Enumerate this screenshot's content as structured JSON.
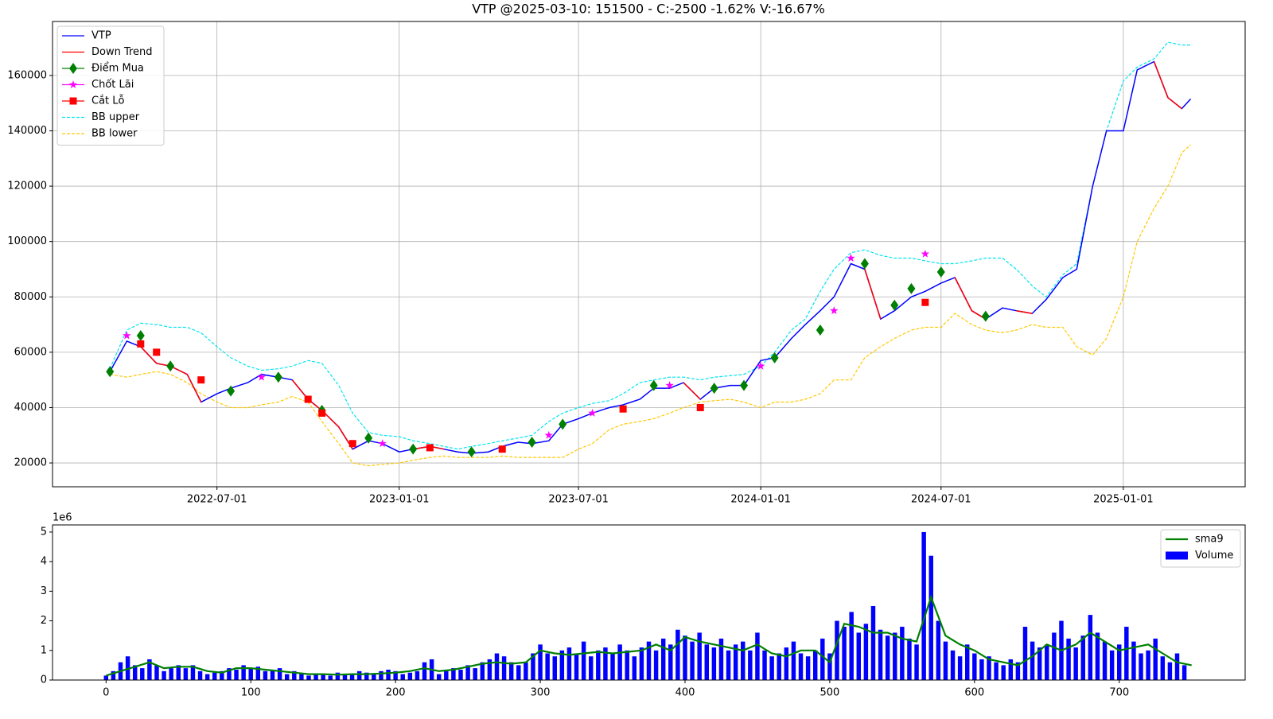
{
  "chart_data": [
    {
      "type": "line",
      "title": "VTP @2025-03-10: 151500 - C:-2500 -1.62% V:-16.67%",
      "grid": true,
      "legend": "upper-left",
      "xlim": [
        "2022-01-16",
        "2025-05-04"
      ],
      "xticks": [
        "2022-07-01",
        "2023-01-01",
        "2023-07-01",
        "2024-01-01",
        "2024-07-01",
        "2025-01-01"
      ],
      "ylim": [
        11400,
        179500
      ],
      "yticks": [
        20000,
        40000,
        60000,
        80000,
        100000,
        120000,
        140000,
        160000
      ],
      "x": [
        "2022-03-15",
        "2022-04-01",
        "2022-04-15",
        "2022-05-01",
        "2022-05-15",
        "2022-06-01",
        "2022-06-15",
        "2022-07-01",
        "2022-07-15",
        "2022-08-01",
        "2022-08-15",
        "2022-09-01",
        "2022-09-15",
        "2022-10-01",
        "2022-10-15",
        "2022-11-01",
        "2022-11-15",
        "2022-12-01",
        "2022-12-15",
        "2023-01-01",
        "2023-01-15",
        "2023-02-01",
        "2023-02-15",
        "2023-03-01",
        "2023-03-15",
        "2023-04-01",
        "2023-04-15",
        "2023-05-01",
        "2023-05-15",
        "2023-06-01",
        "2023-06-15",
        "2023-07-01",
        "2023-07-15",
        "2023-08-01",
        "2023-08-15",
        "2023-09-01",
        "2023-09-15",
        "2023-10-01",
        "2023-10-15",
        "2023-11-01",
        "2023-11-15",
        "2023-12-01",
        "2023-12-15",
        "2024-01-01",
        "2024-01-15",
        "2024-02-01",
        "2024-02-15",
        "2024-03-01",
        "2024-03-15",
        "2024-04-01",
        "2024-04-15",
        "2024-05-01",
        "2024-05-15",
        "2024-06-01",
        "2024-06-15",
        "2024-07-01",
        "2024-07-15",
        "2024-08-01",
        "2024-08-15",
        "2024-09-01",
        "2024-09-15",
        "2024-10-01",
        "2024-10-15",
        "2024-11-01",
        "2024-11-15",
        "2024-12-01",
        "2024-12-15",
        "2025-01-01",
        "2025-01-15",
        "2025-02-01",
        "2025-02-15",
        "2025-03-01",
        "2025-03-10"
      ],
      "series": [
        {
          "name": "VTP",
          "color": "#0000ff",
          "width": 1.5,
          "values": [
            53000,
            64000,
            62000,
            56000,
            55000,
            52000,
            42000,
            45000,
            47000,
            49000,
            52000,
            51000,
            50000,
            43000,
            39000,
            33000,
            25000,
            28000,
            27000,
            24000,
            25000,
            26000,
            25000,
            24000,
            23500,
            24000,
            26000,
            27500,
            27000,
            28000,
            34000,
            36000,
            38000,
            40000,
            41000,
            43000,
            47000,
            47000,
            49000,
            43000,
            47000,
            48000,
            48000,
            57000,
            58000,
            65000,
            70000,
            75000,
            80000,
            92000,
            90000,
            72000,
            75000,
            80000,
            82000,
            85000,
            87000,
            75000,
            72000,
            76000,
            75000,
            74000,
            79000,
            87000,
            90000,
            120000,
            140000,
            140000,
            162000,
            165000,
            152000,
            148000,
            151500
          ]
        },
        {
          "name": "Down Trend",
          "color": "#ff0000",
          "width": 1.5,
          "values": [
            null,
            null,
            62000,
            56000,
            55000,
            52000,
            42000,
            null,
            null,
            null,
            null,
            null,
            50000,
            43000,
            39000,
            33000,
            25000,
            null,
            null,
            null,
            25000,
            26000,
            25000,
            null,
            null,
            null,
            null,
            null,
            null,
            null,
            null,
            null,
            null,
            null,
            null,
            null,
            null,
            null,
            49000,
            43000,
            null,
            null,
            null,
            null,
            null,
            null,
            null,
            null,
            null,
            null,
            90000,
            72000,
            null,
            null,
            null,
            null,
            87000,
            75000,
            72000,
            null,
            75000,
            74000,
            null,
            null,
            null,
            null,
            null,
            null,
            null,
            165000,
            152000,
            148000,
            null
          ]
        },
        {
          "name": "Điểm Mua",
          "color": "#008000",
          "marker": "diamond",
          "x": [
            "2022-03-15",
            "2022-04-15",
            "2022-05-15",
            "2022-07-15",
            "2022-09-01",
            "2022-10-15",
            "2022-12-01",
            "2023-01-15",
            "2023-03-15",
            "2023-05-15",
            "2023-06-15",
            "2023-09-15",
            "2023-11-15",
            "2023-12-15",
            "2024-01-15",
            "2024-03-01",
            "2024-04-15",
            "2024-05-15",
            "2024-06-01",
            "2024-07-01",
            "2024-08-15"
          ],
          "values": [
            53000,
            66000,
            55000,
            46000,
            51000,
            39000,
            29000,
            25000,
            24000,
            27500,
            34000,
            48000,
            47000,
            48000,
            58000,
            68000,
            92000,
            77000,
            83000,
            89000,
            73000
          ]
        },
        {
          "name": "Chốt Lãi",
          "color": "#ff00ff",
          "marker": "star",
          "x": [
            "2022-04-01",
            "2022-08-15",
            "2022-12-15",
            "2023-06-01",
            "2023-07-15",
            "2023-10-01",
            "2024-01-01",
            "2024-03-15",
            "2024-04-01",
            "2024-06-15"
          ],
          "values": [
            66000,
            51000,
            27000,
            30000,
            38000,
            48000,
            55000,
            75000,
            94000,
            95500
          ]
        },
        {
          "name": "Cắt Lỗ",
          "color": "#ff0000",
          "marker": "square",
          "x": [
            "2022-04-15",
            "2022-05-01",
            "2022-06-15",
            "2022-10-01",
            "2022-10-15",
            "2022-11-15",
            "2023-02-01",
            "2023-04-15",
            "2023-08-15",
            "2023-11-01",
            "2024-06-15"
          ],
          "values": [
            63000,
            60000,
            50000,
            43000,
            38000,
            27000,
            25500,
            25000,
            39500,
            40000,
            78000
          ]
        },
        {
          "name": "BB upper",
          "color": "#00e5ee",
          "dashed": true,
          "width": 1.2,
          "values": [
            54000,
            68000,
            70500,
            70000,
            69000,
            69000,
            67000,
            62000,
            58000,
            55000,
            53500,
            54000,
            55000,
            57000,
            56000,
            48000,
            38000,
            31000,
            30000,
            29500,
            28000,
            27000,
            26000,
            25000,
            26000,
            27000,
            28000,
            29000,
            30000,
            35000,
            38000,
            40000,
            41500,
            42500,
            45000,
            49000,
            50000,
            51000,
            51000,
            50000,
            51000,
            51500,
            52000,
            55000,
            60000,
            68000,
            72000,
            82000,
            90000,
            96000,
            97000,
            95000,
            94000,
            94000,
            93000,
            92000,
            92000,
            93000,
            94000,
            94000,
            90000,
            84000,
            80000,
            88000,
            92000,
            120000,
            140000,
            158000,
            163000,
            166000,
            172000,
            171000,
            171000
          ]
        },
        {
          "name": "BB lower",
          "color": "#ffc800",
          "dashed": true,
          "width": 1.2,
          "values": [
            52000,
            51000,
            52000,
            53000,
            52000,
            49000,
            45000,
            42000,
            40000,
            40000,
            41000,
            42000,
            44000,
            42000,
            35000,
            27000,
            20000,
            19000,
            19500,
            20000,
            21000,
            22000,
            22500,
            22000,
            22000,
            22000,
            22500,
            22000,
            22000,
            22000,
            22000,
            25000,
            27000,
            32000,
            34000,
            35000,
            36000,
            38000,
            40000,
            42000,
            42500,
            43000,
            42000,
            40000,
            42000,
            42000,
            43000,
            45000,
            50000,
            50000,
            58000,
            62000,
            65000,
            68000,
            69000,
            69000,
            74000,
            70000,
            68000,
            67000,
            68000,
            70000,
            69000,
            69000,
            62000,
            59000,
            65000,
            80000,
            100000,
            112000,
            120000,
            132000,
            135000
          ]
        }
      ]
    },
    {
      "type": "bar",
      "offset_label": "1e6",
      "grid": false,
      "legend": "upper-right",
      "xlim": [
        -37,
        787
      ],
      "xticks": [
        0,
        100,
        200,
        300,
        400,
        500,
        600,
        700
      ],
      "ylim": [
        0,
        5.24
      ],
      "yticks": [
        0,
        1,
        2,
        3,
        4,
        5
      ],
      "series": [
        {
          "name": "sma9",
          "type": "line",
          "color": "#008000",
          "x": [
            0,
            10,
            20,
            30,
            40,
            50,
            60,
            70,
            80,
            90,
            100,
            110,
            120,
            130,
            140,
            150,
            160,
            170,
            180,
            190,
            200,
            210,
            220,
            230,
            240,
            250,
            260,
            270,
            280,
            290,
            300,
            310,
            320,
            330,
            340,
            350,
            360,
            370,
            380,
            390,
            400,
            410,
            420,
            430,
            440,
            450,
            460,
            470,
            480,
            490,
            500,
            510,
            520,
            530,
            540,
            550,
            560,
            570,
            580,
            590,
            600,
            610,
            620,
            630,
            640,
            650,
            660,
            670,
            680,
            690,
            700,
            710,
            720,
            730,
            740,
            750
          ],
          "values": [
            0.15,
            0.3,
            0.45,
            0.6,
            0.4,
            0.45,
            0.45,
            0.3,
            0.25,
            0.4,
            0.4,
            0.35,
            0.3,
            0.25,
            0.2,
            0.2,
            0.18,
            0.2,
            0.2,
            0.22,
            0.25,
            0.3,
            0.4,
            0.3,
            0.35,
            0.45,
            0.55,
            0.6,
            0.55,
            0.6,
            1.0,
            0.9,
            0.85,
            0.9,
            0.95,
            0.9,
            0.95,
            1.0,
            1.2,
            1.0,
            1.45,
            1.3,
            1.2,
            1.1,
            1.0,
            1.2,
            0.9,
            0.8,
            1.0,
            1.0,
            0.6,
            1.9,
            1.8,
            1.6,
            1.6,
            1.4,
            1.3,
            2.8,
            1.5,
            1.2,
            1.0,
            0.7,
            0.6,
            0.5,
            0.8,
            1.2,
            1.0,
            1.2,
            1.6,
            1.3,
            1.0,
            1.1,
            1.2,
            0.9,
            0.6,
            0.5
          ]
        },
        {
          "name": "Volume",
          "type": "bar",
          "color": "#0000ff",
          "x": [
            0,
            5,
            10,
            15,
            20,
            25,
            30,
            35,
            40,
            45,
            50,
            55,
            60,
            65,
            70,
            75,
            80,
            85,
            90,
            95,
            100,
            105,
            110,
            115,
            120,
            125,
            130,
            135,
            140,
            145,
            150,
            155,
            160,
            165,
            170,
            175,
            180,
            185,
            190,
            195,
            200,
            205,
            210,
            215,
            220,
            225,
            230,
            235,
            240,
            245,
            250,
            255,
            260,
            265,
            270,
            275,
            280,
            285,
            290,
            295,
            300,
            305,
            310,
            315,
            320,
            325,
            330,
            335,
            340,
            345,
            350,
            355,
            360,
            365,
            370,
            375,
            380,
            385,
            390,
            395,
            400,
            405,
            410,
            415,
            420,
            425,
            430,
            435,
            440,
            445,
            450,
            455,
            460,
            465,
            470,
            475,
            480,
            485,
            490,
            495,
            500,
            505,
            510,
            515,
            520,
            525,
            530,
            535,
            540,
            545,
            550,
            555,
            560,
            565,
            570,
            575,
            580,
            585,
            590,
            595,
            600,
            605,
            610,
            615,
            620,
            625,
            630,
            635,
            640,
            645,
            650,
            655,
            660,
            665,
            670,
            675,
            680,
            685,
            690,
            695,
            700,
            705,
            710,
            715,
            720,
            725,
            730,
            735,
            740,
            745
          ],
          "values": [
            0.15,
            0.3,
            0.6,
            0.8,
            0.5,
            0.4,
            0.7,
            0.5,
            0.3,
            0.4,
            0.5,
            0.4,
            0.5,
            0.3,
            0.2,
            0.25,
            0.3,
            0.4,
            0.35,
            0.5,
            0.4,
            0.45,
            0.3,
            0.35,
            0.4,
            0.2,
            0.3,
            0.2,
            0.15,
            0.2,
            0.2,
            0.15,
            0.25,
            0.2,
            0.2,
            0.3,
            0.25,
            0.2,
            0.3,
            0.35,
            0.3,
            0.2,
            0.25,
            0.3,
            0.6,
            0.7,
            0.2,
            0.3,
            0.4,
            0.35,
            0.5,
            0.4,
            0.6,
            0.7,
            0.9,
            0.8,
            0.6,
            0.5,
            0.6,
            0.9,
            1.2,
            0.9,
            0.8,
            1.0,
            1.1,
            0.9,
            1.3,
            0.8,
            1.0,
            1.1,
            0.9,
            1.2,
            1.0,
            0.8,
            1.1,
            1.3,
            1.0,
            1.4,
            1.2,
            1.7,
            1.5,
            1.3,
            1.6,
            1.2,
            1.1,
            1.4,
            1.0,
            1.2,
            1.3,
            1.0,
            1.6,
            1.0,
            0.8,
            0.9,
            1.1,
            1.3,
            0.9,
            0.8,
            1.0,
            1.4,
            0.9,
            2.0,
            1.8,
            2.3,
            1.6,
            1.9,
            2.5,
            1.7,
            1.5,
            1.6,
            1.8,
            1.4,
            1.2,
            5.0,
            4.2,
            2.0,
            1.3,
            1.0,
            0.8,
            1.2,
            0.9,
            0.7,
            0.8,
            0.6,
            0.5,
            0.7,
            0.6,
            1.8,
            1.3,
            1.1,
            1.2,
            1.6,
            2.0,
            1.4,
            1.1,
            1.5,
            2.2,
            1.6,
            1.3,
            1.0,
            1.2,
            1.8,
            1.3,
            0.9,
            1.0,
            1.4,
            0.8,
            0.6,
            0.9,
            0.5
          ]
        }
      ]
    }
  ]
}
